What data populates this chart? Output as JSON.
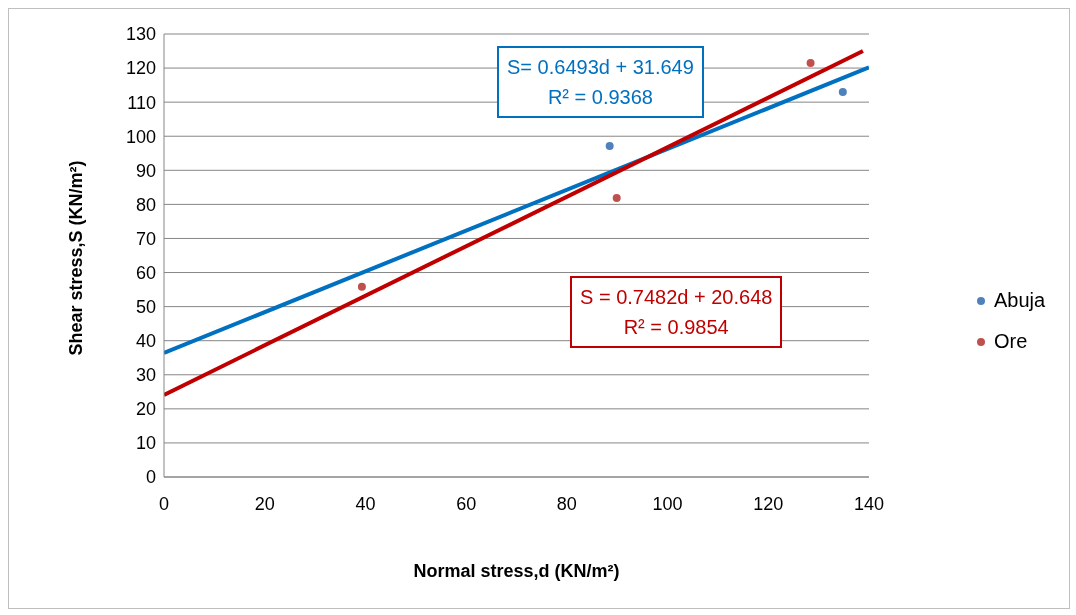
{
  "chart_data": {
    "type": "scatter",
    "xlabel": "Normal stress,d (KN/m²)",
    "ylabel": "Shear stress,S (KN/m²)",
    "xlim": [
      0,
      140
    ],
    "xticks": [
      0,
      20,
      40,
      60,
      80,
      100,
      120,
      140
    ],
    "ylim": [
      0,
      130
    ],
    "yticks": [
      0,
      10,
      20,
      30,
      40,
      50,
      60,
      70,
      80,
      90,
      100,
      110,
      120,
      130
    ],
    "grid": "y",
    "legend": "right",
    "series": [
      {
        "name": "Abuja",
        "color": "#4f81bd",
        "marker": "circle",
        "x": [
          88.5,
          134.8
        ],
        "values": [
          97.1,
          113.0
        ]
      },
      {
        "name": "Ore",
        "color": "#c0504d",
        "marker": "circle",
        "x": [
          39.3,
          89.9,
          128.4
        ],
        "values": [
          55.8,
          81.9,
          121.5
        ]
      },
      {
        "type": "line",
        "color": "#0070c0",
        "marker": "none",
        "x": [
          0,
          140
        ],
        "values": [
          36.4,
          120.2
        ]
      },
      {
        "type": "line",
        "color": "#c00000",
        "marker": "none",
        "x": [
          0,
          138.8
        ],
        "values": [
          24.1,
          125.0
        ]
      }
    ],
    "annotations": [
      "S= 0.6493d + 31.649\nR² = 0.9368",
      "S = 0.7482d + 20.648\nR² = 0.9854"
    ]
  }
}
